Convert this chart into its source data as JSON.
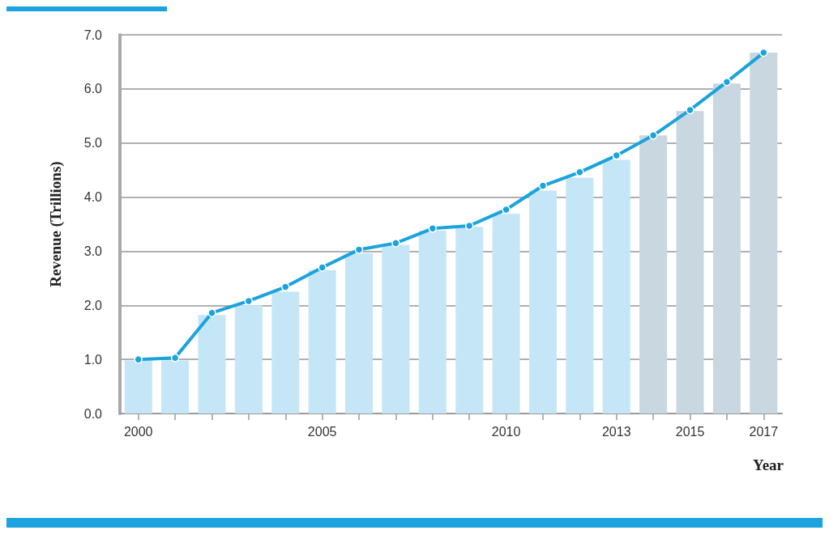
{
  "chart_data": {
    "type": "bar",
    "xlabel": "Year",
    "ylabel": "Revenue (Trillions)",
    "categories": [
      "2000",
      null,
      null,
      null,
      null,
      "2005",
      null,
      null,
      null,
      null,
      "2010",
      null,
      null,
      "2013",
      null,
      "2015",
      null,
      "2017"
    ],
    "series": [
      {
        "colors": [
          "#c5e6f7",
          "#c5e6f7",
          "#c5e6f7",
          "#c5e6f7",
          "#c5e6f7",
          "#c5e6f7",
          "#c5e6f7",
          "#c5e6f7",
          "#c5e6f7",
          "#c5e6f7",
          "#c5e6f7",
          "#c5e6f7",
          "#c5e6f7",
          "#c5e6f7",
          "#c9d7e1",
          "#c9d7e1",
          "#c9d7e1",
          "#c9d7e1"
        ],
        "values": [
          0.98,
          0.98,
          1.82,
          2.0,
          2.25,
          2.65,
          2.96,
          3.12,
          3.38,
          3.45,
          3.69,
          4.12,
          4.36,
          4.69,
          5.14,
          5.59,
          6.1,
          6.67
        ]
      },
      {
        "type": "line",
        "color": "#1aa3dc",
        "marker": "circle",
        "values": [
          1.0,
          1.03,
          1.86,
          2.08,
          2.34,
          2.7,
          3.03,
          3.15,
          3.42,
          3.47,
          3.77,
          4.21,
          4.46,
          4.77,
          5.14,
          5.61,
          6.13,
          6.67
        ]
      }
    ],
    "ylim": [
      0,
      7
    ],
    "yticks": [
      {
        "value": 0,
        "label": "0.0"
      },
      {
        "value": 1,
        "label": "1.0"
      },
      {
        "value": 2,
        "label": "2.0"
      },
      {
        "value": 3,
        "label": "3.0"
      },
      {
        "value": 4,
        "label": "4.0"
      },
      {
        "value": 5,
        "label": "5.0"
      },
      {
        "value": 6,
        "label": "6.0"
      },
      {
        "value": 7,
        "label": "7.0"
      }
    ],
    "grid": "y"
  }
}
